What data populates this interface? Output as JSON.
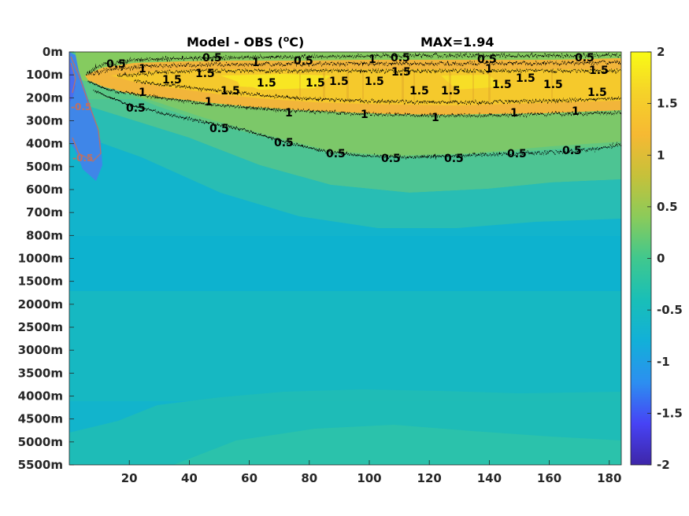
{
  "chart_data": {
    "type": "heatmap",
    "title_left": "Model - OBS (",
    "title_unit_sup": "o",
    "title_unit_tail": "C)",
    "title_right": "MAX=1.94",
    "xlim": [
      0,
      184
    ],
    "x_ticks": [
      20,
      40,
      60,
      80,
      100,
      120,
      140,
      160,
      180
    ],
    "y_tick_labels": [
      "0m",
      "100m",
      "200m",
      "300m",
      "400m",
      "500m",
      "600m",
      "700m",
      "800m",
      "1000m",
      "1500m",
      "2000m",
      "2500m",
      "3000m",
      "3500m",
      "4000m",
      "4500m",
      "5000m",
      "5500m"
    ],
    "clim": [
      -2,
      2
    ],
    "colorbar_ticks": [
      2,
      1.5,
      1,
      0.5,
      0,
      -0.5,
      -1,
      -1.5,
      -2
    ],
    "colorbar_tick_labels": [
      "2",
      "1.5",
      "1",
      "0.5",
      "0",
      "-0.5",
      "-1",
      "-1.5",
      "-2"
    ],
    "colormap": "parula",
    "colormap_stops": [
      "#3e26a8",
      "#4743f5",
      "#2c8ff0",
      "#12b0d8",
      "#19bfb7",
      "#40c88e",
      "#8bcb5a",
      "#c6c13a",
      "#f6b933",
      "#f5d229",
      "#f9fb15"
    ],
    "contour_labels": [
      {
        "text": "0.5",
        "x": 15,
        "y": "100m"
      },
      {
        "text": "1",
        "x": 24,
        "y": "100m"
      },
      {
        "text": "1.5",
        "x": 36,
        "y": "100m"
      },
      {
        "text": "1.5",
        "x": 45,
        "y": "100m"
      },
      {
        "text": "0.5",
        "x": 48,
        "y": "0m"
      },
      {
        "text": "1",
        "x": 61,
        "y": "0m"
      },
      {
        "text": "0.5",
        "x": 79,
        "y": "0m"
      },
      {
        "text": "1.5",
        "x": 54,
        "y": "100m"
      },
      {
        "text": "1.5",
        "x": 65,
        "y": "100m"
      },
      {
        "text": "1.5",
        "x": 82,
        "y": "100m"
      },
      {
        "text": "1.5",
        "x": 90,
        "y": "100m"
      },
      {
        "text": "1.5",
        "x": 106,
        "y": "100m"
      },
      {
        "text": "1.5",
        "x": 113,
        "y": "100m"
      },
      {
        "text": "1.5",
        "x": 123,
        "y": "200m"
      },
      {
        "text": "1.5",
        "x": 130,
        "y": "200m"
      },
      {
        "text": "1.5",
        "x": 145,
        "y": "100m"
      },
      {
        "text": "1.5",
        "x": 153,
        "y": "100m"
      },
      {
        "text": "1.5",
        "x": 160,
        "y": "100m"
      },
      {
        "text": "1.5",
        "x": 175,
        "y": "100m"
      },
      {
        "text": "1.5",
        "x": 176,
        "y": "200m"
      },
      {
        "text": "1",
        "x": 105,
        "y": "0m"
      },
      {
        "text": "0.5",
        "x": 111,
        "y": "0m"
      },
      {
        "text": "0.5",
        "x": 139,
        "y": "0m"
      },
      {
        "text": "1",
        "x": 142,
        "y": "100m"
      },
      {
        "text": "0.5",
        "x": 172,
        "y": "0m"
      },
      {
        "text": "1",
        "x": 24,
        "y": "200m"
      },
      {
        "text": "0.5",
        "x": 22,
        "y": "200m"
      },
      {
        "text": "1",
        "x": 49,
        "y": "200m"
      },
      {
        "text": "1",
        "x": 73,
        "y": "300m"
      },
      {
        "text": "1",
        "x": 99,
        "y": "300m"
      },
      {
        "text": "1",
        "x": 124,
        "y": "300m"
      },
      {
        "text": "1",
        "x": 148,
        "y": "300m"
      },
      {
        "text": "1",
        "x": 169,
        "y": "300m"
      },
      {
        "text": "0.5",
        "x": 51,
        "y": "300m"
      },
      {
        "text": "0.5",
        "x": 72,
        "y": "400m"
      },
      {
        "text": "0.5",
        "x": 90,
        "y": "400m"
      },
      {
        "text": "0.5",
        "x": 108,
        "y": "500m"
      },
      {
        "text": "0.5",
        "x": 128,
        "y": "500m"
      },
      {
        "text": "0.5",
        "x": 150,
        "y": "400m"
      },
      {
        "text": "0.5",
        "x": 169,
        "y": "400m"
      },
      {
        "text": "-0.5",
        "x": 6,
        "y": "500m"
      },
      {
        "text": "-0.5",
        "x": 5,
        "y": "200m"
      }
    ],
    "upper_band_contours": [
      {
        "level": 0.5,
        "points": [
          [
            5,
            "100m"
          ],
          [
            10,
            "0m"
          ],
          [
            50,
            "0m"
          ],
          [
            100,
            "0m"
          ],
          [
            140,
            "0m"
          ],
          [
            182,
            "0m"
          ]
        ]
      },
      {
        "level": 1,
        "points": [
          [
            8,
            "100m"
          ],
          [
            40,
            "200m"
          ],
          [
            80,
            "200m"
          ],
          [
            120,
            "200m"
          ],
          [
            150,
            "200m"
          ],
          [
            182,
            "200m"
          ]
        ]
      },
      {
        "level": 1.5,
        "points": [
          [
            20,
            "100m"
          ],
          [
            60,
            "100m"
          ],
          [
            100,
            "100m"
          ],
          [
            140,
            "100m"
          ],
          [
            182,
            "100m"
          ]
        ]
      },
      {
        "level": 0.5,
        "points": [
          [
            12,
            "200m"
          ],
          [
            45,
            "300m"
          ],
          [
            80,
            "400m"
          ],
          [
            100,
            "500m"
          ],
          [
            140,
            "500m"
          ],
          [
            182,
            "400m"
          ]
        ]
      }
    ]
  }
}
